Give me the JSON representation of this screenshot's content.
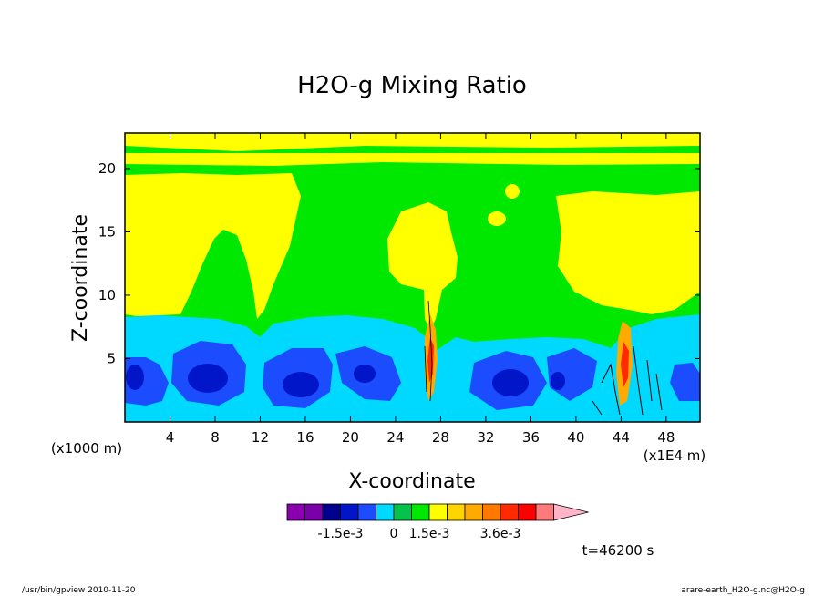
{
  "chart_data": {
    "type": "heatmap",
    "title": "H2O-g Mixing Ratio",
    "xlabel": "X-coordinate",
    "ylabel": "Z-coordinate",
    "x_unit_label": "(x1E4 m)",
    "y_unit_label": "(x1000 m)",
    "xlim": [
      0,
      51
    ],
    "ylim": [
      0,
      22.8
    ],
    "x_ticks": [
      4,
      8,
      12,
      16,
      20,
      24,
      28,
      32,
      36,
      40,
      44,
      48
    ],
    "y_ticks": [
      5,
      10,
      15,
      20
    ],
    "x_tick_labels": [
      "4",
      "8",
      "12",
      "16",
      "20",
      "24",
      "28",
      "32",
      "36",
      "40",
      "44",
      "48"
    ],
    "y_tick_labels": [
      "5",
      "10",
      "15",
      "20"
    ],
    "colorbar": {
      "colors": [
        "#8b00ad",
        "#7a00a8",
        "#00008f",
        "#0016c8",
        "#1b4dff",
        "#00d9ff",
        "#06c24a",
        "#00e800",
        "#ffff00",
        "#ffd500",
        "#ffaa00",
        "#ff7800",
        "#ff2a00",
        "#ff0000",
        "#ff7a7a",
        "#ffb4c8"
      ],
      "tick_labels": [
        "-1.5e-3",
        "0",
        "1.5e-3",
        "3.6e-3"
      ],
      "tick_color_index": [
        3,
        6,
        8,
        12
      ]
    },
    "fields": {
      "level_colors": {
        "deep_blue": "#0016c8",
        "blue": "#1b4dff",
        "cyan": "#00d9ff",
        "green": "#00e800",
        "yellow": "#ffff00",
        "orange": "#ffaa00",
        "red": "#ff2a00"
      }
    }
  },
  "time_label": "t=46200 s",
  "footer_left": "/usr/bin/gpview  2010-11-20",
  "footer_right": "arare-earth_H2O-g.nc@H2O-g"
}
